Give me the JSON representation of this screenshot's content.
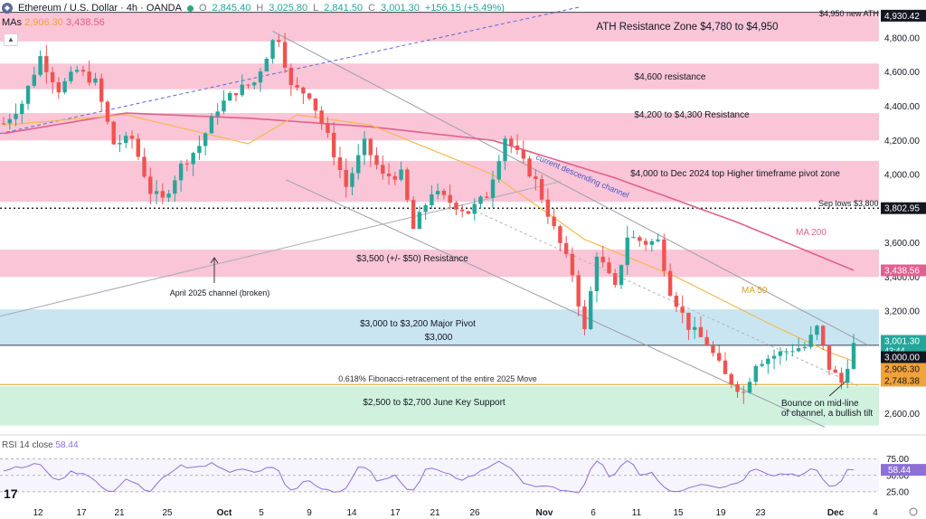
{
  "header": {
    "symbol": "Ethereum / U.S. Dollar · 4h · OANDA",
    "o_label": "O",
    "o": "2,845.40",
    "h_label": "H",
    "h": "3,025.80",
    "l_label": "L",
    "l": "2,841.50",
    "c_label": "C",
    "c": "3,001.30",
    "change": "+156.15 (+5.49%)"
  },
  "mas": {
    "label": "MAs",
    "ma50": "2,906.30",
    "ma200": "3,438.56"
  },
  "rsi_header": {
    "label": "RSI 14 close",
    "value": "58.44"
  },
  "colors": {
    "up": "#26a69a",
    "down": "#ef5350",
    "resistance_zone": "#f8bbd0",
    "pivot_zone": "#bfe0ee",
    "support_zone": "#c8efd8",
    "ma50": "#f5b94f",
    "ma200": "#e0608f",
    "rsi": "#8e6fd8"
  },
  "chart_data": {
    "type": "candlestick",
    "x_ticks": [
      "12",
      "17",
      "21",
      "25",
      "Oct",
      "5",
      "9",
      "14",
      "17",
      "21",
      "26",
      "Nov",
      "6",
      "11",
      "15",
      "19",
      "23",
      "Dec",
      "4"
    ],
    "y_ticks": [
      2600,
      2800,
      3000,
      3200,
      3400,
      3600,
      3800,
      4000,
      4200,
      4400,
      4600,
      4800
    ],
    "y_range": [
      2480,
      4980
    ],
    "price_tags": [
      {
        "value": 4930.42,
        "label": "4,930.42",
        "style": "dark"
      },
      {
        "value": 3802.95,
        "label": "3,802.95",
        "style": "dark"
      },
      {
        "value": 3438.56,
        "label": "3,438.56",
        "style": "ma200"
      },
      {
        "value": 3001.3,
        "label": "3,001.30",
        "sub": "43:44",
        "style": "up"
      },
      {
        "value": 3000.0,
        "label": "3,000.00",
        "style": "dark"
      },
      {
        "value": 2906.3,
        "label": "2,906.30",
        "style": "ma50"
      },
      {
        "value": 2748.38,
        "label": "2,748.38",
        "style": "ma50"
      }
    ],
    "zones": [
      {
        "type": "resistance",
        "from": 4780,
        "to": 4950,
        "label": "ATH Resistance Zone $4,780 to $4,950"
      },
      {
        "type": "resistance",
        "from": 4500,
        "to": 4650,
        "label": "$4,600 resistance"
      },
      {
        "type": "resistance",
        "from": 4200,
        "to": 4360,
        "label": "$4,200 to $4,300 Resistance"
      },
      {
        "type": "resistance",
        "from": 3840,
        "to": 4080,
        "label": "$4,000 to Dec 2024 top Higher timeframe pivot zone"
      },
      {
        "type": "resistance",
        "from": 3400,
        "to": 3560,
        "label": "$3,500 (+/- $50) Resistance"
      },
      {
        "type": "pivot",
        "from": 3000,
        "to": 3210,
        "label": "$3,000 to $3,200 Major Pivot"
      },
      {
        "type": "support",
        "from": 2530,
        "to": 2760,
        "label": "$2,500 to $2,700 June Key Support"
      }
    ],
    "lines": [
      {
        "type": "horizontal",
        "value": 4950,
        "label": "$4,950 new ATH"
      },
      {
        "type": "horizontal-dotted",
        "value": 3802.95,
        "label": "Sep lows $3,800"
      },
      {
        "type": "horizontal",
        "value": 3000,
        "label": "$3,000"
      },
      {
        "type": "horizontal-fib",
        "value": 2770,
        "label": "0.618% Fibonacci-retracement of the entire 2025 Move"
      }
    ],
    "annotations": [
      "current descending channel",
      "April 2025 channel (broken)",
      "MA 200",
      "MA 50",
      "Bounce on mid-line",
      "of channel, a bullish tilt"
    ],
    "close_anchors": [
      [
        0,
        4300
      ],
      [
        3,
        4420
      ],
      [
        6,
        4690
      ],
      [
        9,
        4500
      ],
      [
        12,
        4610
      ],
      [
        15,
        4540
      ],
      [
        18,
        4180
      ],
      [
        21,
        4210
      ],
      [
        24,
        3900
      ],
      [
        26,
        3850
      ],
      [
        29,
        4050
      ],
      [
        32,
        4170
      ],
      [
        35,
        4390
      ],
      [
        38,
        4490
      ],
      [
        41,
        4540
      ],
      [
        44,
        4780
      ],
      [
        45,
        4800
      ],
      [
        47,
        4510
      ],
      [
        50,
        4470
      ],
      [
        53,
        4220
      ],
      [
        56,
        3930
      ],
      [
        59,
        4180
      ],
      [
        62,
        3990
      ],
      [
        65,
        4000
      ],
      [
        67,
        3680
      ],
      [
        70,
        3900
      ],
      [
        73,
        3840
      ],
      [
        76,
        3780
      ],
      [
        79,
        3880
      ],
      [
        82,
        4220
      ],
      [
        84,
        4120
      ],
      [
        87,
        3960
      ],
      [
        90,
        3680
      ],
      [
        93,
        3420
      ],
      [
        95,
        3080
      ],
      [
        97,
        3540
      ],
      [
        100,
        3330
      ],
      [
        102,
        3640
      ],
      [
        105,
        3600
      ],
      [
        107,
        3610
      ],
      [
        109,
        3320
      ],
      [
        112,
        3110
      ],
      [
        115,
        3010
      ],
      [
        118,
        2820
      ],
      [
        121,
        2720
      ],
      [
        123,
        2900
      ],
      [
        126,
        2940
      ],
      [
        129,
        2980
      ],
      [
        131,
        2990
      ],
      [
        133,
        3100
      ],
      [
        135,
        2870
      ],
      [
        137,
        2780
      ],
      [
        139,
        3001
      ]
    ],
    "ma50_anchors": [
      [
        0,
        4290
      ],
      [
        20,
        4350
      ],
      [
        40,
        4180
      ],
      [
        48,
        4350
      ],
      [
        60,
        4290
      ],
      [
        80,
        4000
      ],
      [
        95,
        3620
      ],
      [
        110,
        3400
      ],
      [
        125,
        3130
      ],
      [
        135,
        2960
      ],
      [
        139,
        2906
      ]
    ],
    "ma200_anchors": [
      [
        0,
        4240
      ],
      [
        20,
        4360
      ],
      [
        40,
        4330
      ],
      [
        60,
        4280
      ],
      [
        80,
        4200
      ],
      [
        100,
        3980
      ],
      [
        120,
        3720
      ],
      [
        139,
        3439
      ]
    ],
    "rsi_axis": [
      75.0,
      50.0,
      25.0
    ],
    "rsi_value": 58.44
  }
}
